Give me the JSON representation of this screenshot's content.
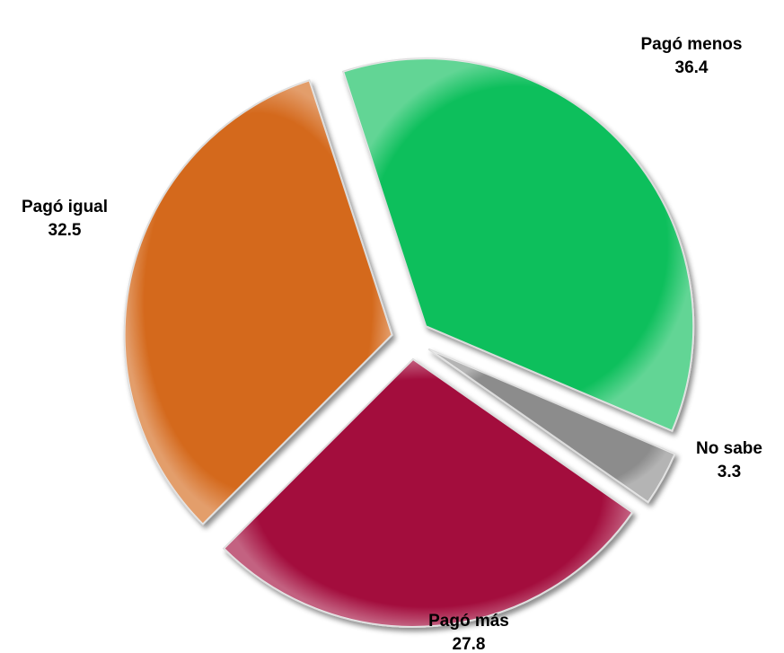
{
  "chart_data": {
    "type": "pie",
    "categories": [
      "Pagó menos",
      "No sabe",
      "Pagó más",
      "Pagó igual"
    ],
    "values": [
      36.4,
      3.3,
      27.8,
      32.5
    ],
    "colors": [
      "#0cbf5b",
      "#8c8c8c",
      "#a3073c",
      "#d4691b"
    ]
  }
}
